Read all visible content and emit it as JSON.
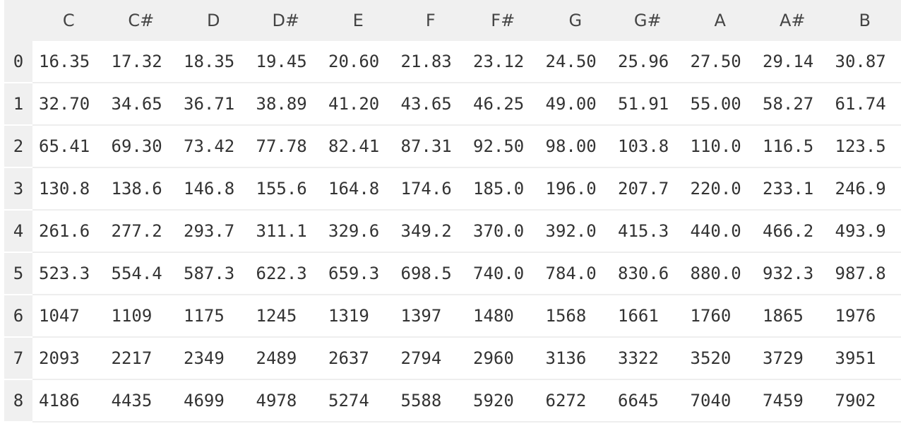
{
  "columns": [
    "C",
    "C#",
    "D",
    "D#",
    "E",
    "F",
    "F#",
    "G",
    "G#",
    "A",
    "A#",
    "B"
  ],
  "rows": [
    {
      "octave": "0",
      "values": [
        "16.35",
        "17.32",
        "18.35",
        "19.45",
        "20.60",
        "21.83",
        "23.12",
        "24.50",
        "25.96",
        "27.50",
        "29.14",
        "30.87"
      ]
    },
    {
      "octave": "1",
      "values": [
        "32.70",
        "34.65",
        "36.71",
        "38.89",
        "41.20",
        "43.65",
        "46.25",
        "49.00",
        "51.91",
        "55.00",
        "58.27",
        "61.74"
      ]
    },
    {
      "octave": "2",
      "values": [
        "65.41",
        "69.30",
        "73.42",
        "77.78",
        "82.41",
        "87.31",
        "92.50",
        "98.00",
        "103.8",
        "110.0",
        "116.5",
        "123.5"
      ]
    },
    {
      "octave": "3",
      "values": [
        "130.8",
        "138.6",
        "146.8",
        "155.6",
        "164.8",
        "174.6",
        "185.0",
        "196.0",
        "207.7",
        "220.0",
        "233.1",
        "246.9"
      ]
    },
    {
      "octave": "4",
      "values": [
        "261.6",
        "277.2",
        "293.7",
        "311.1",
        "329.6",
        "349.2",
        "370.0",
        "392.0",
        "415.3",
        "440.0",
        "466.2",
        "493.9"
      ]
    },
    {
      "octave": "5",
      "values": [
        "523.3",
        "554.4",
        "587.3",
        "622.3",
        "659.3",
        "698.5",
        "740.0",
        "784.0",
        "830.6",
        "880.0",
        "932.3",
        "987.8"
      ]
    },
    {
      "octave": "6",
      "values": [
        "1047",
        "1109",
        "1175",
        "1245",
        "1319",
        "1397",
        "1480",
        "1568",
        "1661",
        "1760",
        "1865",
        "1976"
      ]
    },
    {
      "octave": "7",
      "values": [
        "2093",
        "2217",
        "2349",
        "2489",
        "2637",
        "2794",
        "2960",
        "3136",
        "3322",
        "3520",
        "3729",
        "3951"
      ]
    },
    {
      "octave": "8",
      "values": [
        "4186",
        "4435",
        "4699",
        "4978",
        "5274",
        "5588",
        "5920",
        "6272",
        "6645",
        "7040",
        "7459",
        "7902"
      ]
    }
  ],
  "colors": {
    "header_bg": "#f0f0f0",
    "row_border": "#eeeeee",
    "text": "#333333"
  }
}
